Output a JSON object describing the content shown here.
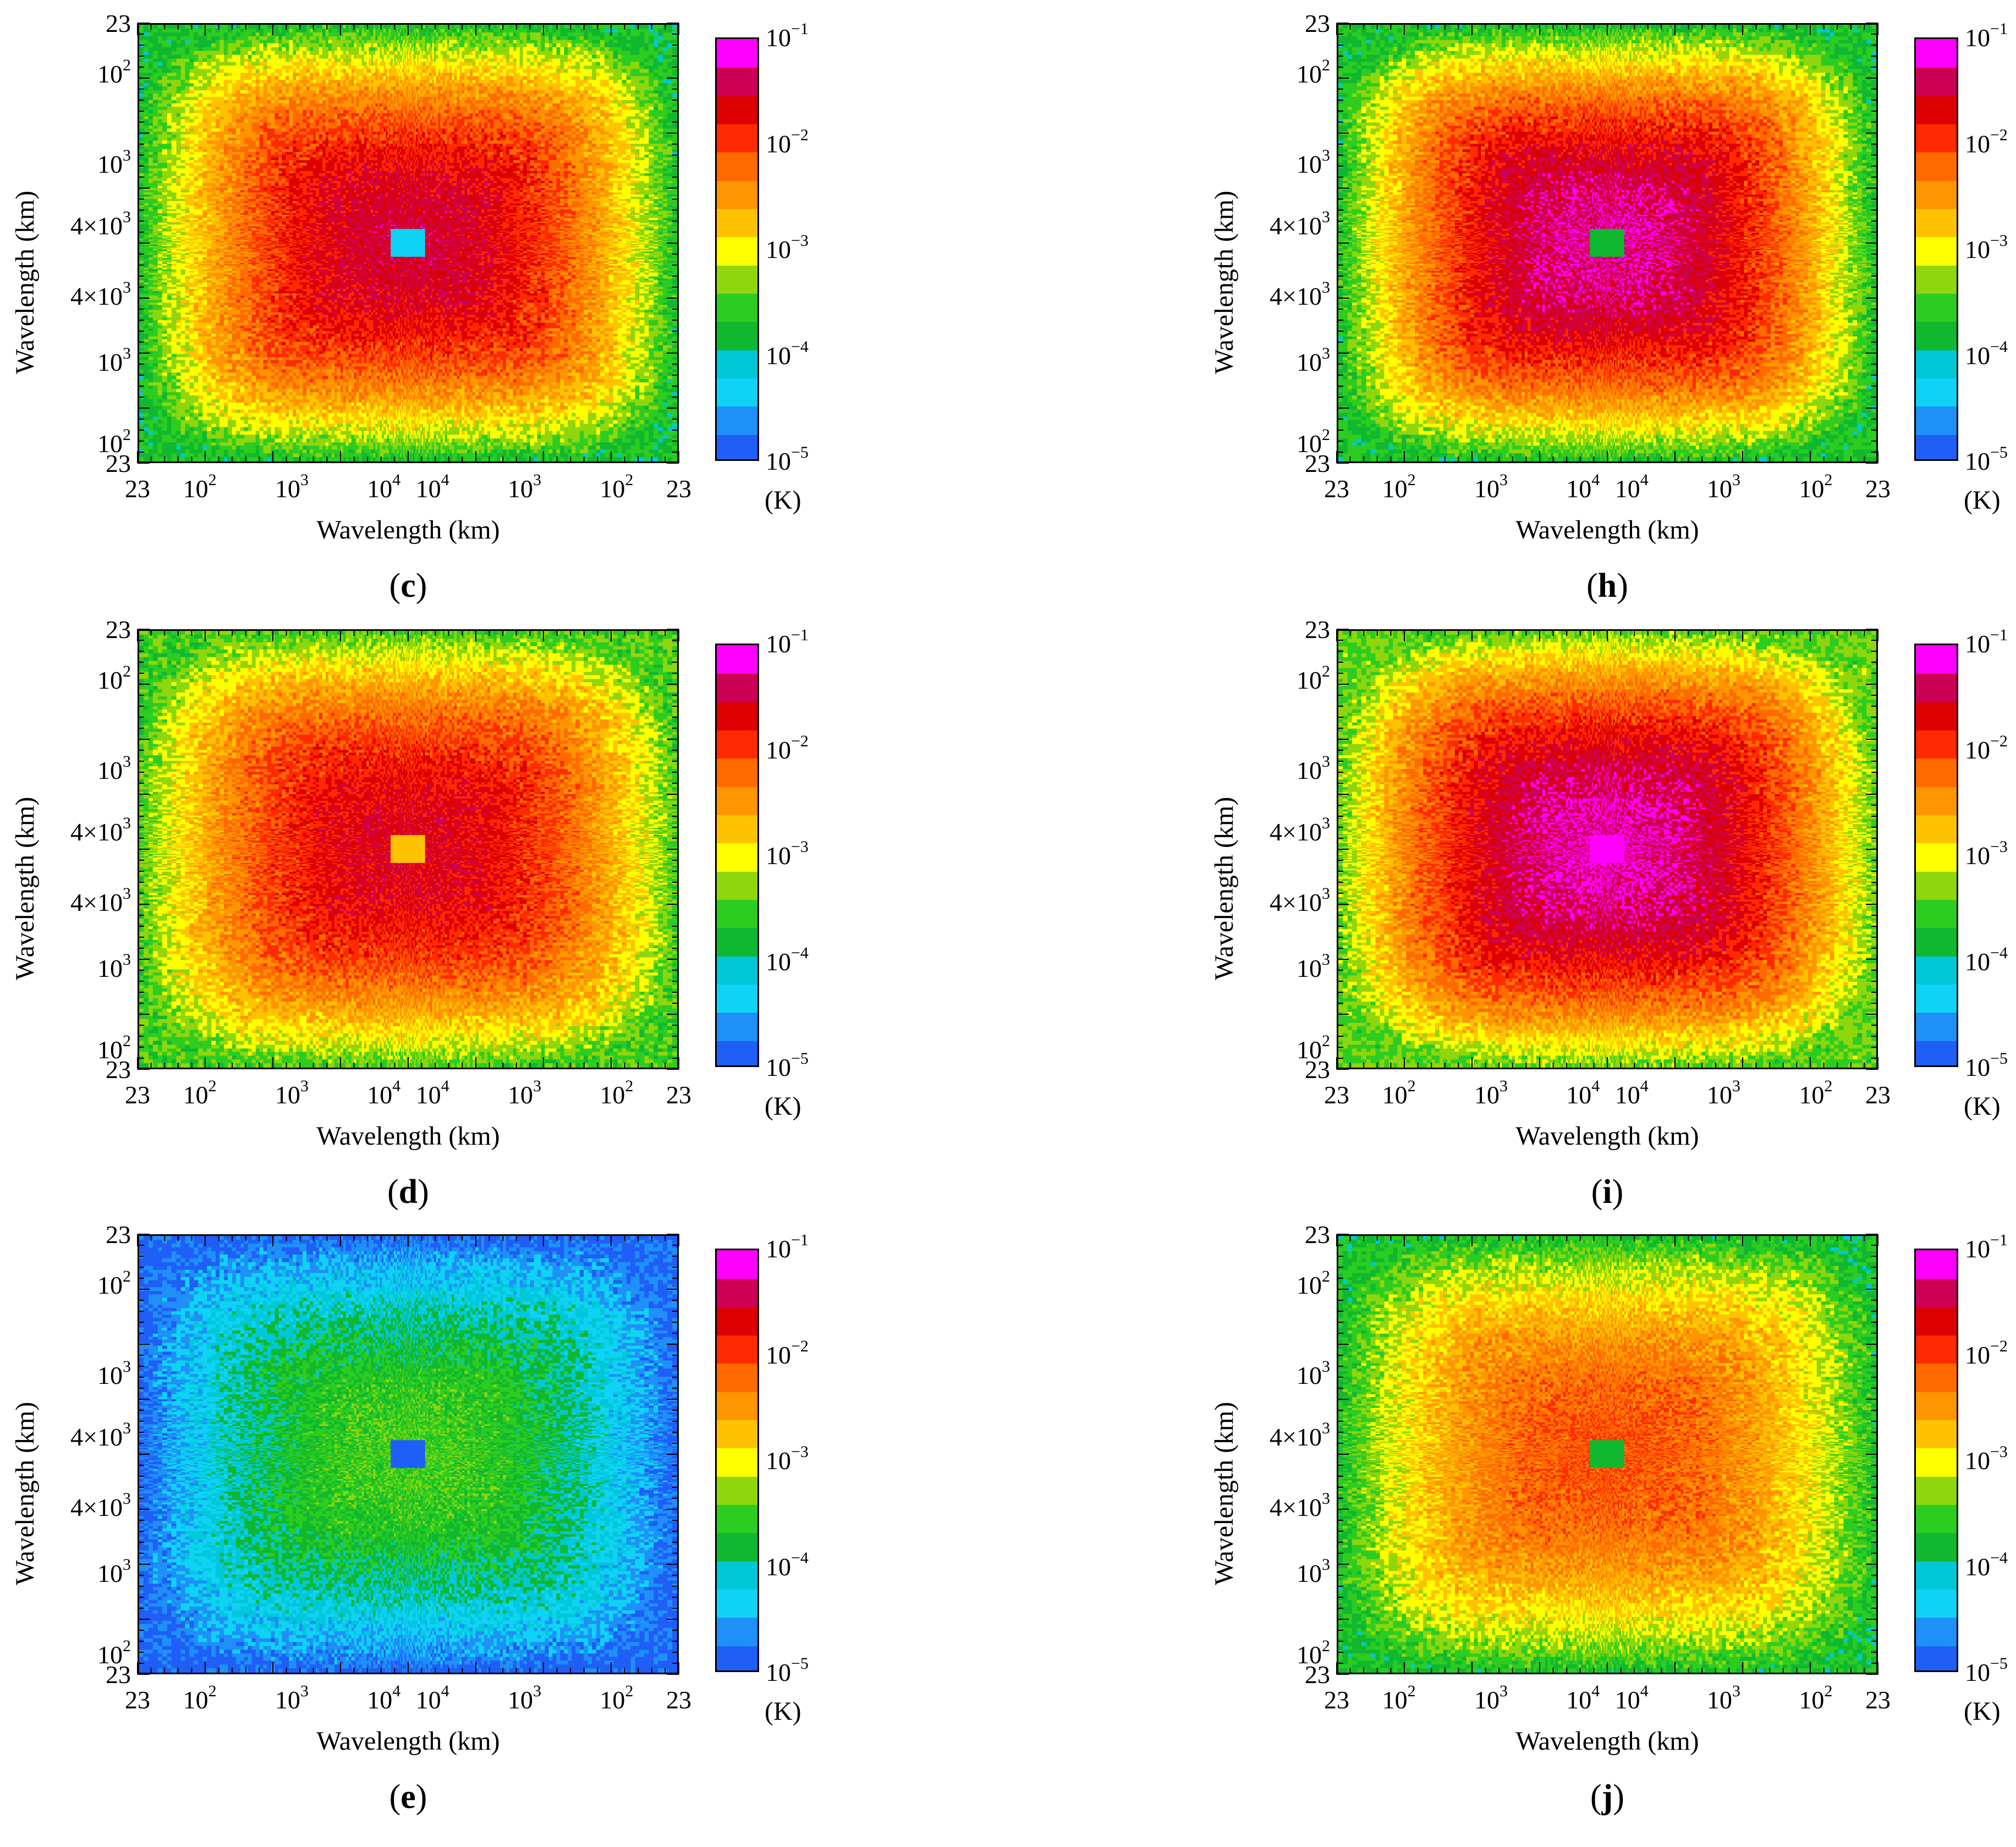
{
  "chart_data": [
    {
      "panel": "c",
      "type": "heatmap",
      "xlabel": "Wavelength (km)",
      "ylabel": "Wavelength (km)",
      "colorbar_unit": "(K)",
      "center_log10": -1.5,
      "corner_log10": -3.7,
      "center_spot_log10": -4.3,
      "edge_sharpness": 1.0
    },
    {
      "panel": "h",
      "type": "heatmap",
      "xlabel": "Wavelength (km)",
      "ylabel": "Wavelength (km)",
      "colorbar_unit": "(K)",
      "center_log10": -1.3,
      "corner_log10": -3.7,
      "center_spot_log10": -3.8,
      "edge_sharpness": 1.0
    },
    {
      "panel": "d",
      "type": "heatmap",
      "xlabel": "Wavelength (km)",
      "ylabel": "Wavelength (km)",
      "colorbar_unit": "(K)",
      "center_log10": -1.6,
      "corner_log10": -3.5,
      "center_spot_log10": -2.8,
      "edge_sharpness": 0.85
    },
    {
      "panel": "i",
      "type": "heatmap",
      "xlabel": "Wavelength (km)",
      "ylabel": "Wavelength (km)",
      "colorbar_unit": "(K)",
      "center_log10": -1.25,
      "corner_log10": -3.4,
      "center_spot_log10": -1.2,
      "edge_sharpness": 0.8
    },
    {
      "panel": "e",
      "type": "heatmap",
      "xlabel": "Wavelength (km)",
      "ylabel": "Wavelength (km)",
      "colorbar_unit": "(K)",
      "center_log10": -3.5,
      "corner_log10": -4.85,
      "center_spot_log10": -4.75,
      "edge_sharpness": 1.0
    },
    {
      "panel": "j",
      "type": "heatmap",
      "xlabel": "Wavelength (km)",
      "ylabel": "Wavelength (km)",
      "colorbar_unit": "(K)",
      "center_log10": -2.1,
      "corner_log10": -3.7,
      "center_spot_log10": -3.7,
      "edge_sharpness": 1.0
    }
  ],
  "axes": {
    "y_ticks": [
      "23",
      "10",
      "10",
      "4×10",
      "4×10",
      "10",
      "10",
      "23"
    ],
    "y_tick_sups": [
      "",
      "2",
      "3",
      "3",
      "3",
      "3",
      "2",
      ""
    ],
    "x_ticks": [
      "23",
      "10",
      "10",
      "10",
      "10",
      "10",
      "10",
      "23"
    ],
    "x_tick_sups": [
      "",
      "2",
      "3",
      "4",
      "4",
      "3",
      "2",
      ""
    ]
  },
  "colorbar": {
    "tick_bases": [
      "10",
      "10",
      "10",
      "10",
      "10"
    ],
    "tick_sups": [
      "−1",
      "−2",
      "−3",
      "−4",
      "−5"
    ],
    "range_log10": [
      -5,
      -1
    ],
    "colors": [
      "#1f5ef7",
      "#1e90f8",
      "#0fd3f5",
      "#00c8d8",
      "#10b830",
      "#2ccd20",
      "#8fd60c",
      "#ffff00",
      "#ffc200",
      "#ff9500",
      "#ff6a00",
      "#ff2a00",
      "#dd0000",
      "#cc0055",
      "#ff00ff"
    ]
  },
  "labels": {
    "c": "c",
    "h": "h",
    "d": "d",
    "i": "i",
    "e": "e",
    "j": "j"
  }
}
